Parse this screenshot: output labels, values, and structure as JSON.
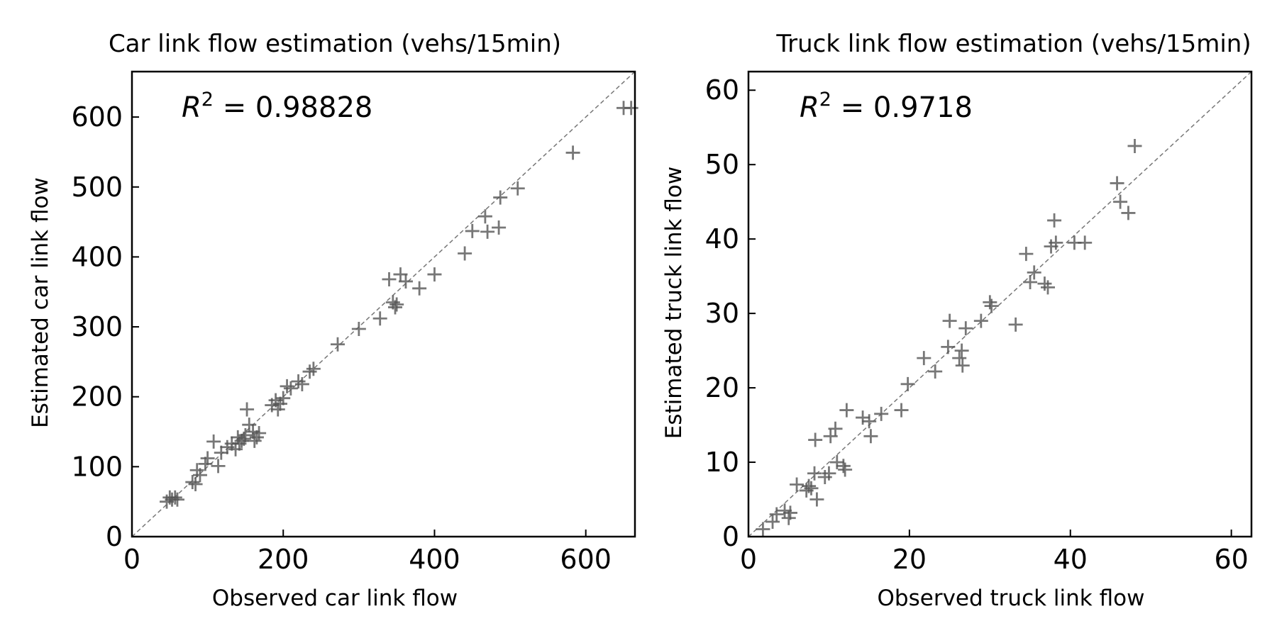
{
  "chart_data": [
    {
      "type": "scatter",
      "title": "Car link flow estimation (vehs/15min)",
      "xlabel": "Observed car link flow",
      "ylabel": "Estimated car link flow",
      "xlim": [
        0,
        665
      ],
      "ylim": [
        0,
        665
      ],
      "xticks": [
        0,
        200,
        400,
        600
      ],
      "yticks": [
        0,
        100,
        200,
        300,
        400,
        500,
        600
      ],
      "annotation": {
        "var": "R",
        "sup": "2",
        "text": " = 0.98828"
      },
      "marker": "+",
      "color": "#555555",
      "grid": false,
      "reference_line": "y = x",
      "points": [
        [
          46,
          50
        ],
        [
          50,
          56
        ],
        [
          53,
          53
        ],
        [
          57,
          56
        ],
        [
          60,
          53
        ],
        [
          80,
          78
        ],
        [
          84,
          75
        ],
        [
          86,
          95
        ],
        [
          90,
          88
        ],
        [
          97,
          104
        ],
        [
          100,
          112
        ],
        [
          108,
          136
        ],
        [
          114,
          101
        ],
        [
          118,
          120
        ],
        [
          126,
          128
        ],
        [
          132,
          133
        ],
        [
          137,
          125
        ],
        [
          140,
          142
        ],
        [
          142,
          133
        ],
        [
          145,
          137
        ],
        [
          148,
          140
        ],
        [
          150,
          145
        ],
        [
          152,
          182
        ],
        [
          155,
          160
        ],
        [
          160,
          150
        ],
        [
          162,
          137
        ],
        [
          165,
          142
        ],
        [
          168,
          148
        ],
        [
          185,
          188
        ],
        [
          190,
          195
        ],
        [
          193,
          182
        ],
        [
          196,
          190
        ],
        [
          200,
          198
        ],
        [
          205,
          215
        ],
        [
          210,
          212
        ],
        [
          220,
          222
        ],
        [
          225,
          218
        ],
        [
          235,
          236
        ],
        [
          240,
          240
        ],
        [
          272,
          275
        ],
        [
          300,
          297
        ],
        [
          328,
          312
        ],
        [
          340,
          368
        ],
        [
          345,
          335
        ],
        [
          348,
          328
        ],
        [
          350,
          332
        ],
        [
          355,
          375
        ],
        [
          362,
          365
        ],
        [
          380,
          355
        ],
        [
          400,
          375
        ],
        [
          440,
          405
        ],
        [
          450,
          437
        ],
        [
          467,
          458
        ],
        [
          470,
          436
        ],
        [
          485,
          442
        ],
        [
          487,
          485
        ],
        [
          510,
          498
        ],
        [
          583,
          549
        ],
        [
          650,
          613
        ],
        [
          660,
          613
        ]
      ]
    },
    {
      "type": "scatter",
      "title": "Truck link flow estimation (vehs/15min)",
      "xlabel": "Observed truck link flow",
      "ylabel": "Estimated truck link flow",
      "xlim": [
        0,
        62.5
      ],
      "ylim": [
        0,
        62.5
      ],
      "xticks": [
        0,
        20,
        40,
        60
      ],
      "yticks": [
        0,
        10,
        20,
        30,
        40,
        50,
        60
      ],
      "annotation": {
        "var": "R",
        "sup": "2",
        "text": " = 0.9718"
      },
      "marker": "+",
      "color": "#555555",
      "grid": false,
      "reference_line": "y = x",
      "points": [
        [
          1.8,
          1.0
        ],
        [
          3.0,
          2.0
        ],
        [
          3.5,
          3.0
        ],
        [
          4.5,
          3.5
        ],
        [
          5.0,
          2.5
        ],
        [
          5.2,
          3.2
        ],
        [
          6.0,
          7.0
        ],
        [
          7.2,
          6.2
        ],
        [
          7.5,
          6.8
        ],
        [
          7.8,
          6.5
        ],
        [
          8.2,
          8.5
        ],
        [
          8.3,
          13.0
        ],
        [
          8.5,
          5.0
        ],
        [
          9.5,
          8.0
        ],
        [
          10.0,
          8.5
        ],
        [
          10.2,
          13.5
        ],
        [
          10.8,
          14.5
        ],
        [
          11.0,
          10.0
        ],
        [
          11.8,
          9.5
        ],
        [
          12.0,
          9.0
        ],
        [
          12.2,
          17.0
        ],
        [
          14.2,
          16.0
        ],
        [
          15.0,
          15.5
        ],
        [
          15.2,
          13.5
        ],
        [
          16.5,
          16.5
        ],
        [
          19.0,
          17.0
        ],
        [
          19.8,
          20.5
        ],
        [
          21.8,
          24.0
        ],
        [
          23.2,
          22.2
        ],
        [
          24.8,
          25.5
        ],
        [
          25.0,
          29.0
        ],
        [
          26.2,
          24.0
        ],
        [
          26.5,
          25.0
        ],
        [
          26.6,
          23.0
        ],
        [
          27.0,
          28.0
        ],
        [
          28.9,
          29.0
        ],
        [
          30.0,
          31.5
        ],
        [
          30.2,
          31.0
        ],
        [
          33.2,
          28.5
        ],
        [
          34.5,
          38.0
        ],
        [
          35.0,
          34.2
        ],
        [
          35.5,
          35.5
        ],
        [
          36.8,
          34.0
        ],
        [
          37.2,
          33.5
        ],
        [
          37.6,
          39.0
        ],
        [
          38.0,
          42.5
        ],
        [
          38.2,
          39.5
        ],
        [
          40.5,
          39.5
        ],
        [
          41.8,
          39.5
        ],
        [
          45.8,
          47.5
        ],
        [
          46.2,
          45.0
        ],
        [
          47.2,
          43.5
        ],
        [
          48.0,
          52.5
        ]
      ]
    }
  ]
}
